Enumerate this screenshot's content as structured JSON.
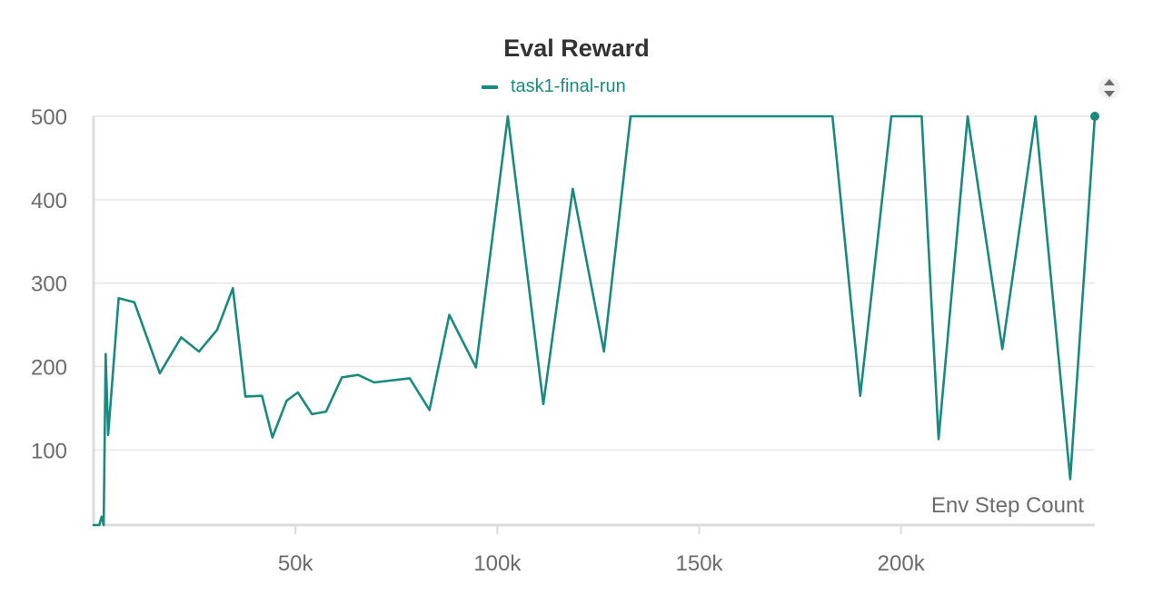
{
  "chart_data": {
    "type": "line",
    "title": "Eval Reward",
    "xlabel": "Env Step Count",
    "ylabel": "",
    "xlim": [
      0,
      248000
    ],
    "ylim": [
      10,
      500
    ],
    "grid": true,
    "legend_position": "top-center",
    "x_ticks": [
      50000,
      100000,
      150000,
      200000
    ],
    "x_tick_labels": [
      "50k",
      "100k",
      "150k",
      "200k"
    ],
    "y_ticks": [
      100,
      200,
      300,
      400,
      500
    ],
    "y_tick_labels": [
      "100",
      "200",
      "300",
      "400",
      "500"
    ],
    "series": [
      {
        "name": "task1-final-run",
        "color": "#1a8a7e",
        "x": [
          0,
          1400,
          2000,
          2500,
          3000,
          3600,
          6200,
          10100,
          16400,
          21700,
          26100,
          30600,
          34500,
          37600,
          41700,
          44300,
          47800,
          50600,
          54100,
          57600,
          61500,
          65500,
          69500,
          78300,
          83200,
          88100,
          94700,
          102600,
          111400,
          118700,
          126400,
          133000,
          183000,
          189900,
          197600,
          205100,
          209300,
          216500,
          225100,
          233300,
          241900,
          248000
        ],
        "y": [
          10,
          10,
          20,
          10,
          215,
          118,
          282,
          277,
          192,
          235,
          218,
          244,
          294,
          164,
          165,
          115,
          159,
          169,
          143,
          146,
          187,
          190,
          181,
          186,
          148,
          262,
          199,
          500,
          155,
          413,
          218,
          500,
          500,
          165,
          500,
          500,
          113,
          500,
          221,
          500,
          65,
          500
        ]
      }
    ]
  }
}
